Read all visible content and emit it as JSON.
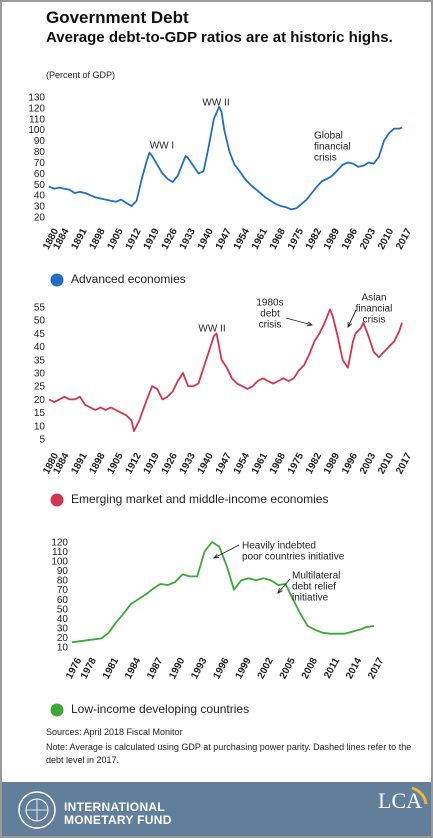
{
  "header": {
    "title": "Government Debt",
    "subtitle": "Average debt-to-GDP ratios are at historic highs.",
    "unit": "(Percent of GDP)"
  },
  "chart_data": [
    {
      "type": "line",
      "x": [
        1880,
        1882,
        1884,
        1886,
        1888,
        1890,
        1892,
        1894,
        1896,
        1898,
        1900,
        1902,
        1904,
        1906,
        1908,
        1910,
        1912,
        1914,
        1916,
        1918,
        1919,
        1920,
        1922,
        1924,
        1926,
        1928,
        1930,
        1932,
        1933,
        1934,
        1936,
        1938,
        1940,
        1942,
        1944,
        1946,
        1947,
        1948,
        1950,
        1952,
        1954,
        1956,
        1958,
        1960,
        1962,
        1964,
        1966,
        1968,
        1970,
        1972,
        1974,
        1976,
        1978,
        1980,
        1982,
        1984,
        1986,
        1988,
        1990,
        1992,
        1994,
        1996,
        1998,
        2000,
        2002,
        2004,
        2006,
        2008,
        2010,
        2012,
        2014,
        2016,
        2017
      ],
      "series": [
        {
          "name": "Advanced economies",
          "color": "#1f6fc5",
          "values": [
            48,
            46,
            47,
            46,
            45,
            42,
            43,
            42,
            40,
            38,
            37,
            36,
            35,
            34,
            36,
            33,
            30,
            35,
            55,
            72,
            79,
            76,
            68,
            60,
            55,
            52,
            58,
            70,
            76,
            74,
            67,
            60,
            62,
            85,
            110,
            121,
            116,
            100,
            80,
            68,
            62,
            55,
            50,
            46,
            42,
            38,
            35,
            32,
            30,
            29,
            27,
            28,
            32,
            36,
            42,
            48,
            53,
            55,
            58,
            63,
            68,
            70,
            69,
            66,
            67,
            70,
            69,
            75,
            90,
            97,
            101,
            101,
            102
          ]
        }
      ],
      "xlim": [
        1880,
        2017
      ],
      "ylim": [
        15,
        130
      ],
      "xticks": [
        1880,
        1884,
        1891,
        1898,
        1905,
        1912,
        1919,
        1926,
        1933,
        1940,
        1947,
        1954,
        1961,
        1968,
        1975,
        1982,
        1989,
        1996,
        2003,
        2010,
        2017
      ],
      "yticks": [
        20,
        30,
        40,
        50,
        60,
        70,
        80,
        90,
        100,
        110,
        120,
        130
      ],
      "annotations": [
        [
          "WW I"
        ],
        [
          "WW II"
        ],
        [
          "Global",
          "financial",
          "crisis"
        ]
      ]
    },
    {
      "type": "line",
      "x": [
        1880,
        1882,
        1884,
        1886,
        1888,
        1890,
        1892,
        1894,
        1896,
        1898,
        1900,
        1902,
        1904,
        1906,
        1908,
        1910,
        1912,
        1913,
        1915,
        1918,
        1920,
        1922,
        1924,
        1926,
        1928,
        1930,
        1932,
        1934,
        1936,
        1938,
        1940,
        1942,
        1944,
        1945,
        1947,
        1949,
        1951,
        1953,
        1955,
        1957,
        1959,
        1961,
        1963,
        1965,
        1967,
        1969,
        1971,
        1973,
        1975,
        1977,
        1979,
        1981,
        1983,
        1985,
        1987,
        1989,
        1990,
        1992,
        1994,
        1996,
        1998,
        1999,
        2001,
        2002,
        2004,
        2006,
        2008,
        2010,
        2012,
        2014,
        2016,
        2017
      ],
      "series": [
        {
          "name": "Emerging market and middle-income economies",
          "color": "#d2354d",
          "values": [
            20,
            19,
            20,
            21,
            20,
            20,
            21,
            18,
            17,
            16,
            17,
            16,
            17,
            16,
            15,
            14,
            12,
            8,
            12,
            20,
            25,
            24,
            20,
            21,
            23,
            27,
            30,
            25,
            25,
            26,
            32,
            38,
            44,
            45,
            35,
            32,
            28,
            26,
            25,
            24,
            25,
            27,
            28,
            27,
            26,
            27,
            28,
            27,
            28,
            31,
            33,
            37,
            42,
            45,
            49,
            54,
            52,
            44,
            35,
            32,
            42,
            45,
            47,
            49,
            44,
            38,
            36,
            38,
            40,
            42,
            46,
            49
          ]
        }
      ],
      "xlim": [
        1880,
        2017
      ],
      "ylim": [
        2,
        57
      ],
      "xticks": [
        1880,
        1884,
        1891,
        1898,
        1905,
        1912,
        1919,
        1926,
        1933,
        1940,
        1947,
        1954,
        1961,
        1968,
        1975,
        1982,
        1989,
        1996,
        2003,
        2010,
        2017
      ],
      "yticks": [
        5,
        10,
        15,
        20,
        25,
        30,
        35,
        40,
        45,
        50,
        55
      ],
      "annotations": [
        [
          "WW II"
        ],
        [
          "1980s",
          "debt",
          "crisis"
        ],
        [
          "Asian",
          "financial",
          "crisis"
        ]
      ]
    },
    {
      "type": "line",
      "x": [
        1976,
        1978,
        1980,
        1981,
        1982,
        1983,
        1984,
        1985,
        1986,
        1987,
        1988,
        1989,
        1990,
        1991,
        1992,
        1993,
        1994,
        1995,
        1996,
        1997,
        1998,
        1999,
        2000,
        2001,
        2002,
        2003,
        2004,
        2005,
        2006,
        2007,
        2008,
        2009,
        2010,
        2011,
        2012,
        2013,
        2014,
        2015,
        2016,
        2017
      ],
      "series": [
        {
          "name": "Low-income developing countries",
          "color": "#3aa935",
          "values": [
            15,
            17,
            19,
            25,
            36,
            45,
            55,
            60,
            65,
            71,
            76,
            75,
            78,
            86,
            84,
            84,
            110,
            120,
            115,
            95,
            70,
            80,
            82,
            80,
            82,
            80,
            75,
            76,
            60,
            45,
            32,
            28,
            25,
            24,
            24,
            24,
            26,
            28,
            31,
            32
          ]
        }
      ],
      "xlim": [
        1976,
        2017
      ],
      "ylim": [
        5,
        125
      ],
      "xticks": [
        1976,
        1978,
        1981,
        1984,
        1987,
        1990,
        1993,
        1996,
        1999,
        2002,
        2005,
        2008,
        2011,
        2014,
        2017
      ],
      "yticks": [
        10,
        20,
        30,
        40,
        50,
        60,
        70,
        80,
        90,
        100,
        110,
        120
      ],
      "annotations": [
        [
          "Heavily indebted",
          "poor countries initiative"
        ],
        [
          "Multilateral",
          "debt relief",
          "initiative"
        ]
      ]
    }
  ],
  "footer": {
    "sources": "Sources: April 2018 Fiscal Monitor",
    "note": "Note: Average is calculated using GDP at purchasing power parity. Dashed lines refer to the debt level in 2017.",
    "org_line1": "INTERNATIONAL",
    "org_line2": "MONETARY FUND",
    "brand": "LCA"
  }
}
